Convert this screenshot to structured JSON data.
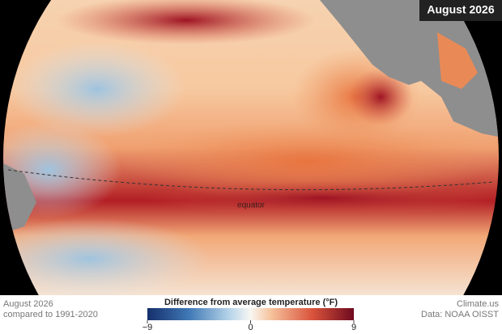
{
  "badge": "August 2026",
  "map_labels": {
    "equator": "equator"
  },
  "footer": {
    "date": "August 2026",
    "baseline": "compared to 1991-2020",
    "source": "Climate.us",
    "data_credit": "Data: NOAA OISST"
  },
  "colorbar": {
    "title": "Difference from average temperature (°F)",
    "xlim": [
      -9,
      9
    ],
    "xticks": [
      {
        "value": -9,
        "label": "−9"
      },
      0,
      9
    ]
  }
}
